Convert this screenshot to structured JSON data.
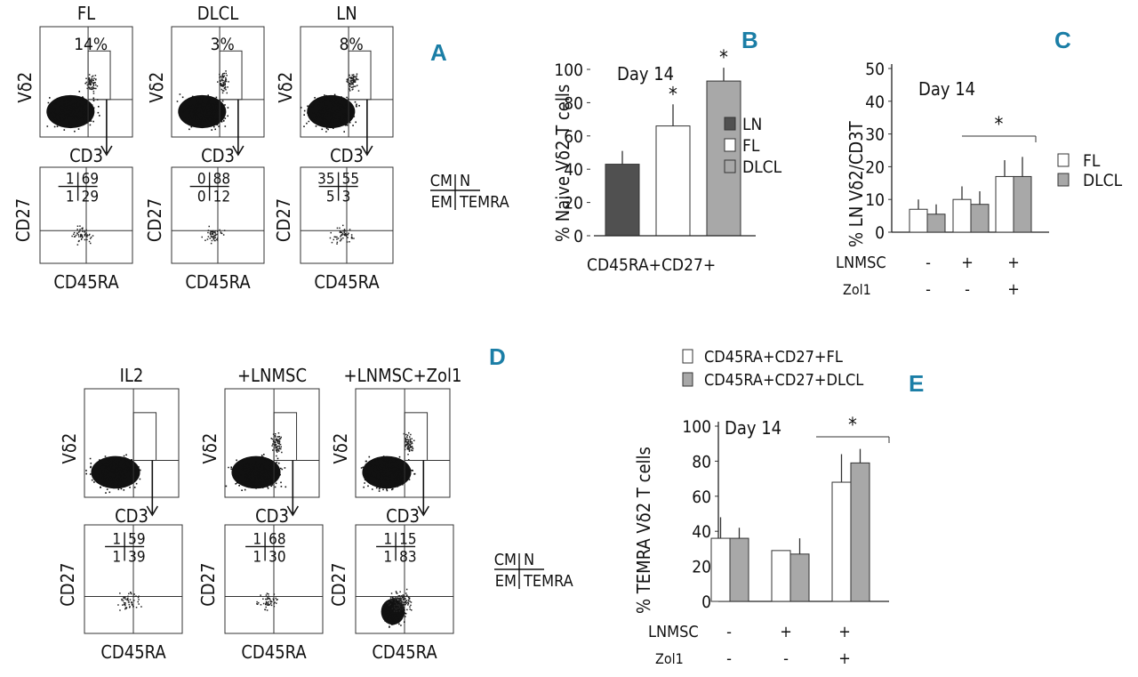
{
  "panels": {
    "A": {
      "letter": "A",
      "top_plots": [
        {
          "title": "FL",
          "percent": "14%",
          "xlabel": "CD3",
          "ylabel": "Vδ2"
        },
        {
          "title": "DLCL",
          "percent": "3%",
          "xlabel": "CD3",
          "ylabel": "Vδ2"
        },
        {
          "title": "LN",
          "percent": "8%",
          "xlabel": "CD3",
          "ylabel": "Vδ2"
        }
      ],
      "bottom_plots": [
        {
          "q": [
            "1",
            "69",
            "1",
            "29"
          ],
          "xlabel": "CD45RA",
          "ylabel": "CD27"
        },
        {
          "q": [
            "0",
            "88",
            "0",
            "12"
          ],
          "xlabel": "CD45RA",
          "ylabel": "CD27"
        },
        {
          "q": [
            "35",
            "55",
            "5",
            "3"
          ],
          "xlabel": "CD45RA",
          "ylabel": "CD27"
        }
      ],
      "legend": {
        "cm": "CM",
        "n": "N",
        "em": "EM",
        "temra": "TEMRA"
      }
    },
    "D": {
      "letter": "D",
      "top_plots": [
        {
          "title": "IL2",
          "xlabel": "CD3",
          "ylabel": "Vδ2"
        },
        {
          "title": "+LNMSC",
          "xlabel": "CD3",
          "ylabel": "Vδ2"
        },
        {
          "title": "+LNMSC+Zol1",
          "xlabel": "CD3",
          "ylabel": "Vδ2"
        }
      ],
      "bottom_plots": [
        {
          "q": [
            "1",
            "59",
            "1",
            "39"
          ],
          "xlabel": "CD45RA",
          "ylabel": "CD27"
        },
        {
          "q": [
            "1",
            "68",
            "1",
            "30"
          ],
          "xlabel": "CD45RA",
          "ylabel": "CD27"
        },
        {
          "q": [
            "1",
            "15",
            "1",
            "83"
          ],
          "xlabel": "CD45RA",
          "ylabel": "CD27"
        }
      ],
      "legend": {
        "cm": "CM",
        "n": "N",
        "em": "EM",
        "temra": "TEMRA"
      }
    },
    "B": {
      "letter": "B",
      "annotation": "Day 14",
      "sig": [
        "*",
        "*"
      ]
    },
    "C": {
      "letter": "C",
      "annotation": "Day 14",
      "sig": "*",
      "row_labels": [
        "LNMSC",
        "Zol1"
      ],
      "lnmsc": [
        "-",
        "+",
        "+"
      ],
      "zol1": [
        "-",
        "-",
        "+"
      ]
    },
    "E": {
      "letter": "E",
      "annotation": "Day 14",
      "sig": "*",
      "row_labels": [
        "LNMSC",
        "Zol1"
      ],
      "lnmsc": [
        "-",
        "+",
        "+"
      ],
      "zol1": [
        "-",
        "-",
        "+"
      ]
    }
  },
  "chart_data": [
    {
      "panel": "B",
      "type": "bar",
      "categories": [
        "LN",
        "FL",
        "DLCL"
      ],
      "values": [
        43,
        66,
        93
      ],
      "errors": [
        8,
        13,
        8
      ],
      "colors": [
        "#505050",
        "#ffffff",
        "#a8a8a8"
      ],
      "xlabel": "CD45RA+CD27+",
      "ylabel": "% Naive Vδ2 T cells",
      "yticks": [
        0,
        20,
        40,
        60,
        80,
        100
      ],
      "ylim": [
        0,
        100
      ],
      "legend": [
        "LN",
        "FL",
        "DLCL"
      ],
      "legend_position": "right"
    },
    {
      "panel": "C",
      "type": "bar",
      "groups": 3,
      "series": [
        {
          "name": "FL",
          "values": [
            7,
            10,
            17
          ],
          "errors": [
            3,
            4,
            5
          ],
          "color": "#ffffff"
        },
        {
          "name": "DLCL",
          "values": [
            5.5,
            8.5,
            17
          ],
          "errors": [
            3,
            4,
            6
          ],
          "color": "#a8a8a8"
        }
      ],
      "ylabel": "% LN Vδ2/CD3T",
      "yticks": [
        0,
        10,
        20,
        30,
        40,
        50
      ],
      "ylim": [
        0,
        50
      ],
      "legend_position": "right"
    },
    {
      "panel": "E",
      "type": "bar",
      "groups": 3,
      "series": [
        {
          "name": "CD45RA+CD27+FL",
          "values": [
            36,
            29,
            68
          ],
          "errors": [
            12,
            0,
            16
          ],
          "color": "#ffffff"
        },
        {
          "name": "CD45RA+CD27+DLCL",
          "values": [
            36,
            27,
            79
          ],
          "errors": [
            6,
            9,
            8
          ],
          "color": "#a8a8a8"
        }
      ],
      "ylabel": "% TEMRA Vδ2 T cells",
      "yticks": [
        0,
        20,
        40,
        60,
        80,
        100
      ],
      "ylim": [
        0,
        100
      ],
      "legend_position": "top"
    }
  ]
}
